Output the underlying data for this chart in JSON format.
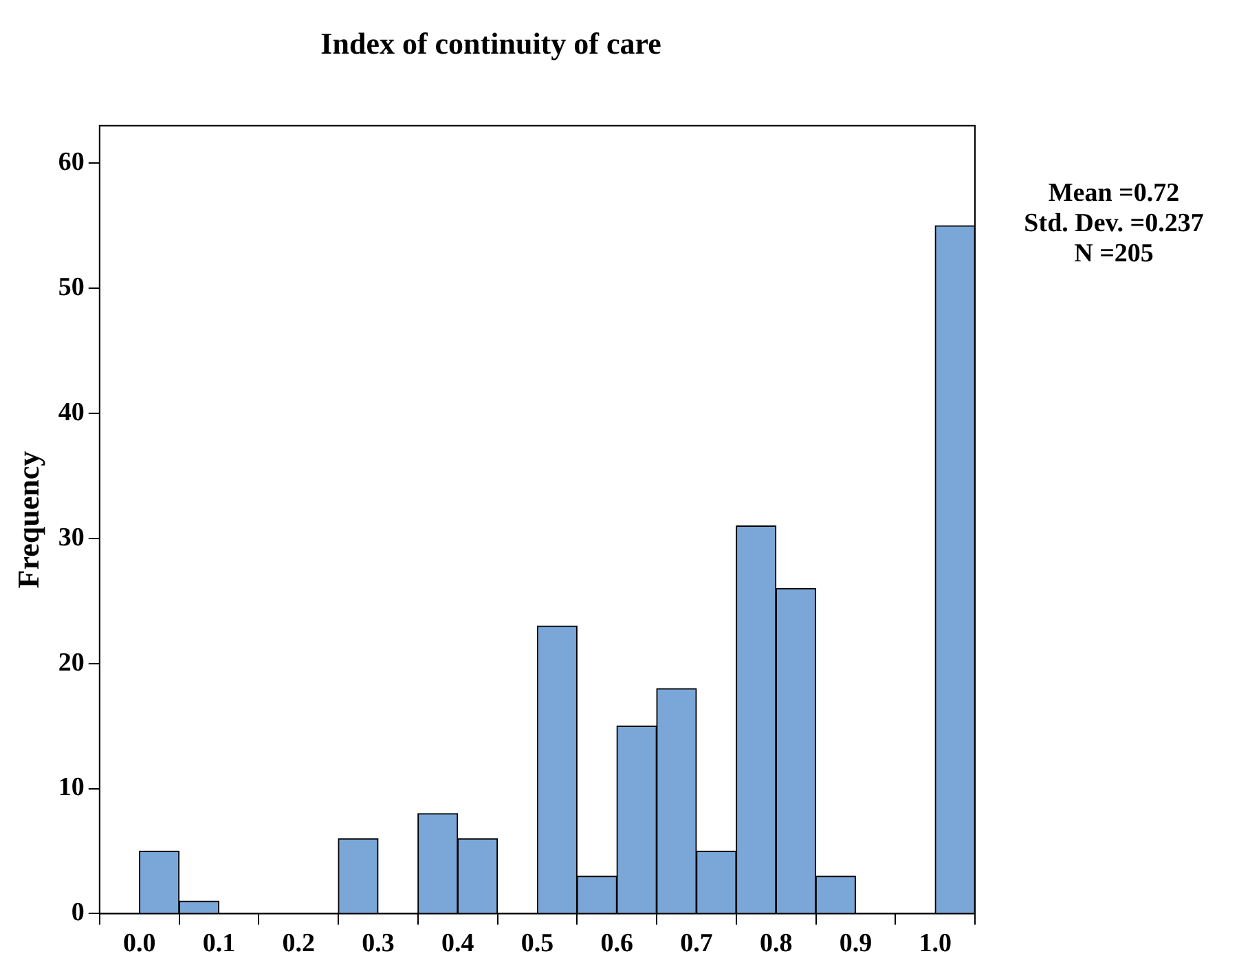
{
  "chart_data": {
    "type": "histogram",
    "title": "Index of continuity of care",
    "ylabel": "Frequency",
    "bins": [
      0,
      0.05,
      0.1,
      0.15,
      0.2,
      0.25,
      0.3,
      0.35,
      0.4,
      0.45,
      0.5,
      0.55,
      0.6,
      0.65,
      0.7,
      0.75,
      0.8,
      0.85,
      0.9,
      0.95,
      1.0,
      1.05
    ],
    "values": [
      5,
      1,
      0,
      0,
      0,
      6,
      0,
      8,
      6,
      0,
      23,
      3,
      15,
      18,
      5,
      31,
      26,
      3,
      0,
      0,
      55
    ],
    "color": "#7ba7d8",
    "xlim": [
      -0.05,
      1.05
    ],
    "xticks": [
      {
        "value": 0,
        "label": "0.0"
      },
      {
        "value": 0.1,
        "label": "0.1"
      },
      {
        "value": 0.2,
        "label": "0.2"
      },
      {
        "value": 0.3,
        "label": "0.3"
      },
      {
        "value": 0.4,
        "label": "0.4"
      },
      {
        "value": 0.5,
        "label": "0.5"
      },
      {
        "value": 0.6,
        "label": "0.6"
      },
      {
        "value": 0.7,
        "label": "0.7"
      },
      {
        "value": 0.8,
        "label": "0.8"
      },
      {
        "value": 0.9,
        "label": "0.9"
      },
      {
        "value": 1.0,
        "label": "1.0"
      }
    ],
    "ylim": [
      0,
      63
    ],
    "yticks": [
      0,
      10,
      20,
      30,
      40,
      50,
      60
    ],
    "grid": false,
    "legend": false,
    "annotations": [
      "Mean =0.72",
      "Std. Dev. =0.237",
      "N =205"
    ]
  }
}
